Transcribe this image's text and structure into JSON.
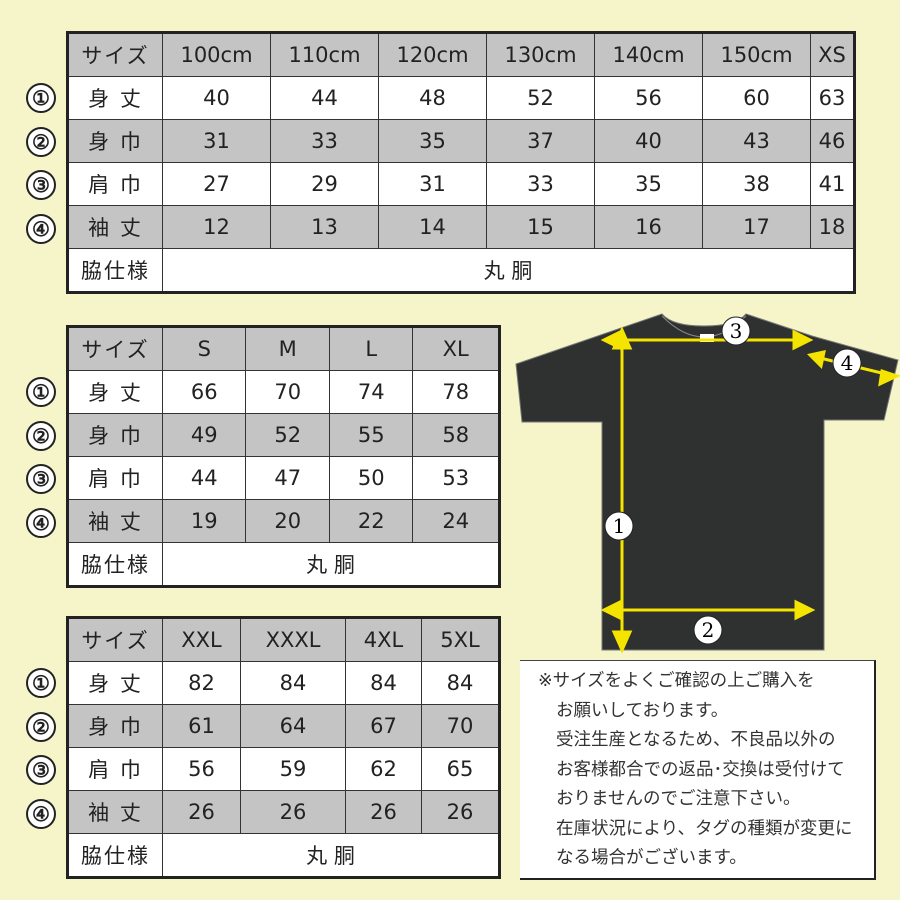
{
  "row_markers": [
    "①",
    "②",
    "③",
    "④"
  ],
  "tables": [
    {
      "header": [
        "サイズ",
        "100cm",
        "110cm",
        "120cm",
        "130cm",
        "140cm",
        "150cm",
        "XS"
      ],
      "rows": [
        {
          "label": "身 丈",
          "values": [
            "40",
            "44",
            "48",
            "52",
            "56",
            "60",
            "63"
          ]
        },
        {
          "label": "身 巾",
          "values": [
            "31",
            "33",
            "35",
            "37",
            "40",
            "43",
            "46"
          ]
        },
        {
          "label": "肩 巾",
          "values": [
            "27",
            "29",
            "31",
            "33",
            "35",
            "38",
            "41"
          ]
        },
        {
          "label": "袖 丈",
          "values": [
            "12",
            "13",
            "14",
            "15",
            "16",
            "17",
            "18"
          ]
        }
      ],
      "side_label": "脇仕様",
      "side_value": "丸 胴"
    },
    {
      "header": [
        "サイズ",
        "S",
        "M",
        "L",
        "XL"
      ],
      "rows": [
        {
          "label": "身 丈",
          "values": [
            "66",
            "70",
            "74",
            "78"
          ]
        },
        {
          "label": "身 巾",
          "values": [
            "49",
            "52",
            "55",
            "58"
          ]
        },
        {
          "label": "肩 巾",
          "values": [
            "44",
            "47",
            "50",
            "53"
          ]
        },
        {
          "label": "袖 丈",
          "values": [
            "19",
            "20",
            "22",
            "24"
          ]
        }
      ],
      "side_label": "脇仕様",
      "side_value": "丸 胴"
    },
    {
      "header": [
        "サイズ",
        "XXL",
        "XXXL",
        "4XL",
        "5XL"
      ],
      "rows": [
        {
          "label": "身 丈",
          "values": [
            "82",
            "84",
            "84",
            "84"
          ]
        },
        {
          "label": "身 巾",
          "values": [
            "61",
            "64",
            "67",
            "70"
          ]
        },
        {
          "label": "肩 巾",
          "values": [
            "56",
            "59",
            "62",
            "65"
          ]
        },
        {
          "label": "袖 丈",
          "values": [
            "26",
            "26",
            "26",
            "26"
          ]
        }
      ],
      "side_label": "脇仕様",
      "side_value": "丸 胴"
    }
  ],
  "diagram": {
    "markers": [
      "1",
      "2",
      "3",
      "4"
    ],
    "shirt_color": "#2f3130",
    "arrow_color": "#f5e400"
  },
  "notes": [
    "※サイズをよくご確認の上ご購入を",
    "お願いしております。",
    "受注生産となるため、不良品以外の",
    "お客様都合での返品･交換は受付けて",
    "おりませんのでご注意下さい。",
    "在庫状況により、タグの種類が変更に",
    "なる場合がございます。"
  ],
  "colors": {
    "background": "#f5f5c9",
    "header_gray": "#c4c4c4"
  }
}
